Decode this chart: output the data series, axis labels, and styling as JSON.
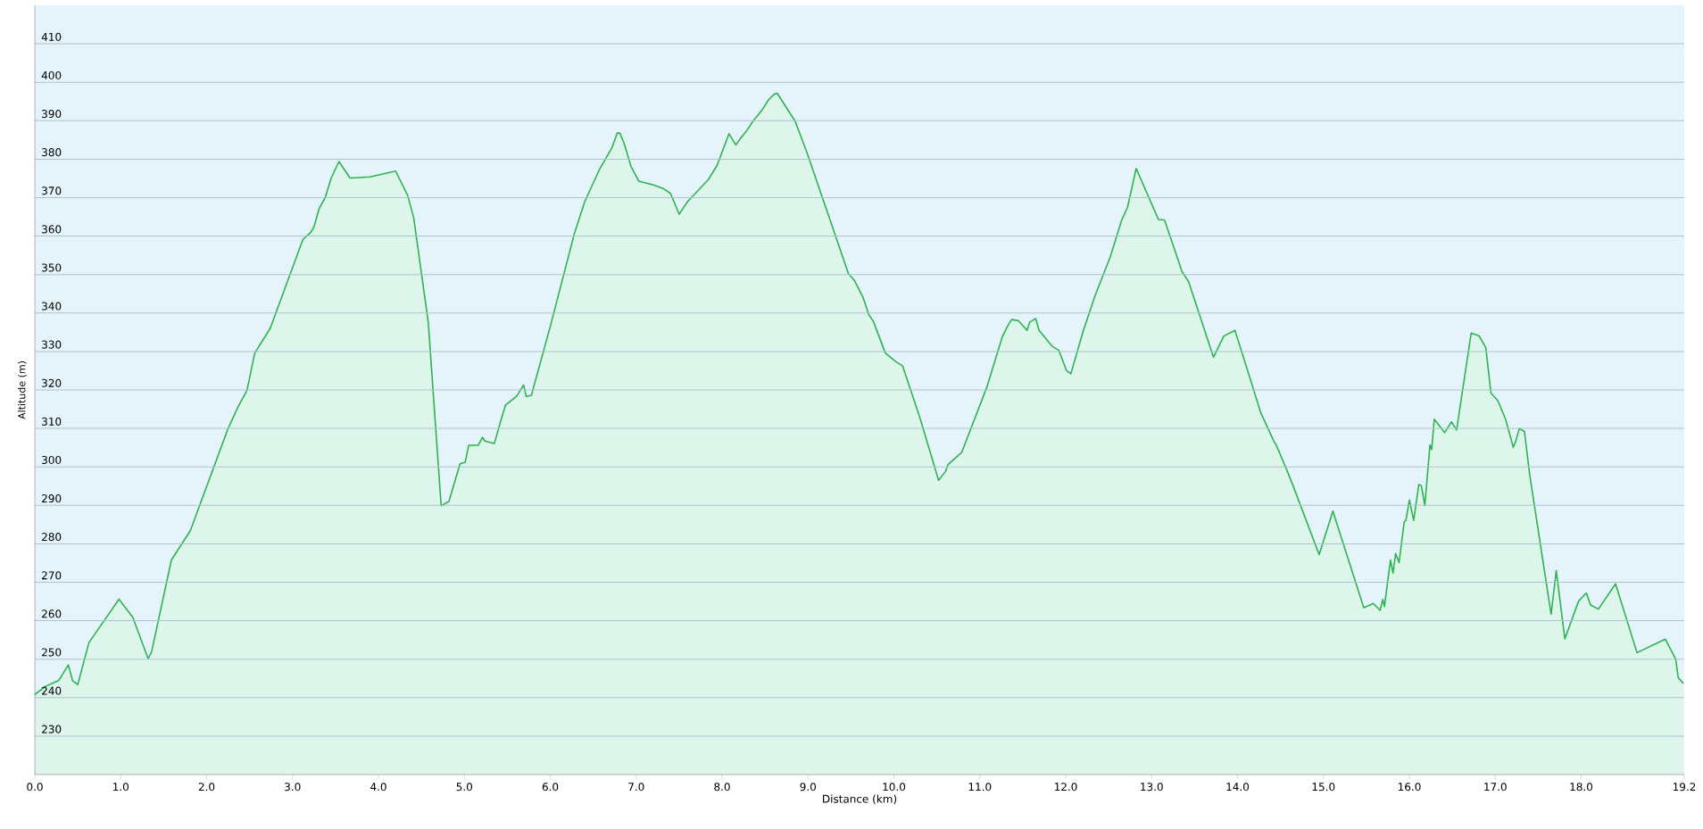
{
  "chart_data": {
    "type": "area",
    "xlabel": "Distance (km)",
    "ylabel": "Altitude (m)",
    "xlim": [
      0,
      19.2
    ],
    "ylim": [
      220,
      420
    ],
    "xticks": [
      {
        "value": 0,
        "label": "0.0"
      },
      {
        "value": 1,
        "label": "1.0"
      },
      {
        "value": 2,
        "label": "2.0"
      },
      {
        "value": 3,
        "label": "3.0"
      },
      {
        "value": 4,
        "label": "4.0"
      },
      {
        "value": 5,
        "label": "5.0"
      },
      {
        "value": 6,
        "label": "6.0"
      },
      {
        "value": 7,
        "label": "7.0"
      },
      {
        "value": 8,
        "label": "8.0"
      },
      {
        "value": 9,
        "label": "9.0"
      },
      {
        "value": 10,
        "label": "10.0"
      },
      {
        "value": 11,
        "label": "11.0"
      },
      {
        "value": 12,
        "label": "12.0"
      },
      {
        "value": 13,
        "label": "13.0"
      },
      {
        "value": 14,
        "label": "14.0"
      },
      {
        "value": 15,
        "label": "15.0"
      },
      {
        "value": 16,
        "label": "16.0"
      },
      {
        "value": 17,
        "label": "17.0"
      },
      {
        "value": 18,
        "label": "18.0"
      },
      {
        "value": 19.2,
        "label": "19.2"
      }
    ],
    "yticks": [
      230,
      240,
      250,
      260,
      270,
      280,
      290,
      300,
      310,
      320,
      330,
      340,
      350,
      360,
      370,
      380,
      390,
      400,
      410
    ],
    "grid": "y",
    "marker": "none",
    "line_style": "solid",
    "series": [
      {
        "color": "#2db350",
        "x": [
          0,
          0.13,
          0.28,
          0.39,
          0.44,
          0.5,
          0.63,
          0.98,
          1.14,
          1.32,
          1.36,
          1.59,
          1.81,
          2.25,
          2.37,
          2.47,
          2.56,
          2.74,
          3.12,
          3.21,
          3.25,
          3.31,
          3.38,
          3.45,
          3.54,
          3.67,
          3.9,
          4.2,
          4.34,
          4.41,
          4.58,
          4.73,
          4.82,
          4.95,
          5.01,
          5.05,
          5.16,
          5.21,
          5.24,
          5.35,
          5.42,
          5.48,
          5.61,
          5.69,
          5.72,
          5.78,
          6.0,
          6.28,
          6.4,
          6.57,
          6.72,
          6.78,
          6.81,
          6.86,
          6.94,
          7.03,
          7.2,
          7.32,
          7.4,
          7.5,
          7.6,
          7.84,
          7.94,
          8.08,
          8.16,
          8.2,
          8.28,
          8.36,
          8.46,
          8.54,
          8.6,
          8.64,
          8.85,
          8.99,
          9.47,
          9.54,
          9.64,
          9.71,
          9.76,
          9.9,
          10.02,
          10.1,
          10.3,
          10.52,
          10.6,
          10.63,
          10.79,
          11.08,
          11.26,
          11.33,
          11.37,
          11.45,
          11.55,
          11.58,
          11.65,
          11.69,
          11.84,
          11.92,
          12.01,
          12.06,
          12.2,
          12.34,
          12.52,
          12.65,
          12.72,
          12.82,
          13.08,
          13.15,
          13.31,
          13.35,
          13.43,
          13.72,
          13.84,
          13.97,
          14.15,
          14.27,
          14.42,
          14.45,
          14.56,
          14.64,
          14.95,
          15.11,
          15.42,
          15.47,
          15.58,
          15.66,
          15.69,
          15.71,
          15.78,
          15.81,
          15.84,
          15.88,
          15.94,
          15.96,
          16.0,
          16.05,
          16.11,
          16.14,
          16.18,
          16.24,
          16.26,
          16.29,
          16.41,
          16.49,
          16.55,
          16.72,
          16.81,
          16.89,
          16.95,
          17.03,
          17.12,
          17.21,
          17.24,
          17.28,
          17.34,
          17.4,
          17.65,
          17.71,
          17.81,
          17.97,
          18.06,
          18.11,
          18.2,
          18.4,
          18.65,
          18.98,
          19.1,
          19.13,
          19.19
        ],
        "values": [
          240.8,
          243,
          244.5,
          248.5,
          244.4,
          243.4,
          254.3,
          265.6,
          260.9,
          250.1,
          252,
          275.8,
          283.4,
          310,
          315.8,
          319.9,
          329.6,
          336,
          359.1,
          360.9,
          362.4,
          367.2,
          370,
          375.1,
          379.4,
          375.1,
          375.4,
          376.9,
          370.6,
          364.8,
          337.6,
          289.9,
          291,
          300.8,
          301.2,
          305.6,
          305.6,
          307.7,
          306.7,
          306.1,
          311.7,
          316.1,
          318.4,
          321.3,
          318.3,
          318.6,
          336.5,
          360.6,
          368.9,
          377.2,
          383.1,
          386.8,
          386.8,
          384.1,
          378.1,
          374.3,
          373.3,
          372.3,
          371.1,
          365.7,
          369,
          374.7,
          378.3,
          386.6,
          383.7,
          385,
          387.2,
          389.9,
          392.6,
          395.4,
          396.8,
          397.2,
          389.9,
          381.6,
          350.3,
          348.5,
          344.1,
          339.5,
          337.9,
          329.6,
          327.4,
          326.3,
          313,
          296.5,
          298.8,
          300.6,
          303.8,
          320.6,
          333.7,
          336.9,
          338.3,
          338,
          335.5,
          337.6,
          338.6,
          335.5,
          331.4,
          330.3,
          325,
          324.2,
          335.1,
          344.4,
          354.7,
          364.1,
          367.5,
          377.6,
          364.3,
          364.2,
          353.7,
          350.9,
          348.2,
          328.5,
          334,
          335.5,
          322.7,
          314.1,
          306.8,
          305.7,
          299.9,
          295.5,
          277.2,
          288.5,
          266.8,
          263.4,
          264.5,
          262.7,
          265.5,
          263.7,
          275.8,
          272.4,
          277.5,
          275.1,
          285.7,
          286.1,
          291.4,
          286.1,
          295.4,
          295.1,
          289.9,
          305.7,
          304.5,
          312.4,
          308.9,
          311.7,
          309.6,
          334.8,
          334.1,
          331,
          319.2,
          317.2,
          312.4,
          305.1,
          306.8,
          310,
          309.2,
          298.1,
          261.7,
          273,
          255.3,
          265.1,
          267.2,
          264.1,
          263,
          269.6,
          251.7,
          255.2,
          250,
          245.2,
          243.7
        ]
      }
    ]
  }
}
